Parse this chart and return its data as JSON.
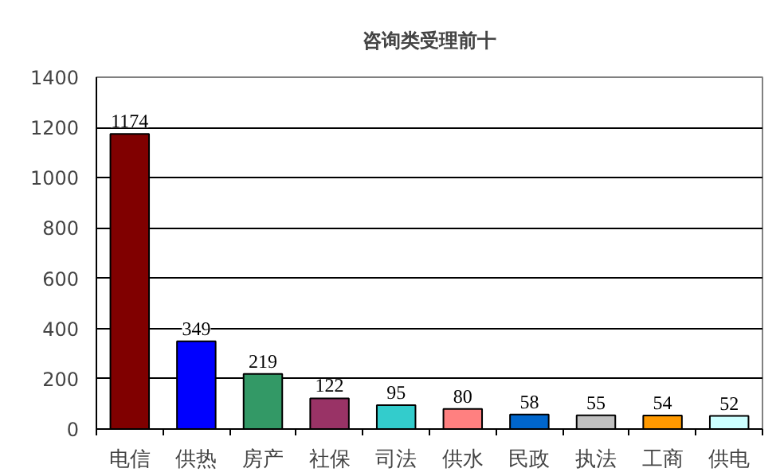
{
  "chart_data": {
    "type": "bar",
    "title": "咨询类受理前十",
    "categories": [
      "电信",
      "供热",
      "房产",
      "社保",
      "司法",
      "供水",
      "民政",
      "执法",
      "工商",
      "供电"
    ],
    "values": [
      1174,
      349,
      219,
      122,
      95,
      80,
      58,
      55,
      54,
      52
    ],
    "colors": [
      "#800000",
      "#0000ff",
      "#339966",
      "#993366",
      "#33cccc",
      "#ff8080",
      "#0066cc",
      "#c0c0c0",
      "#ff9900",
      "#ccffff"
    ],
    "ylim": [
      0,
      1400
    ],
    "yticks": [
      0,
      200,
      400,
      600,
      800,
      1000,
      1200,
      1400
    ],
    "grid": "y",
    "data_labels": true
  }
}
